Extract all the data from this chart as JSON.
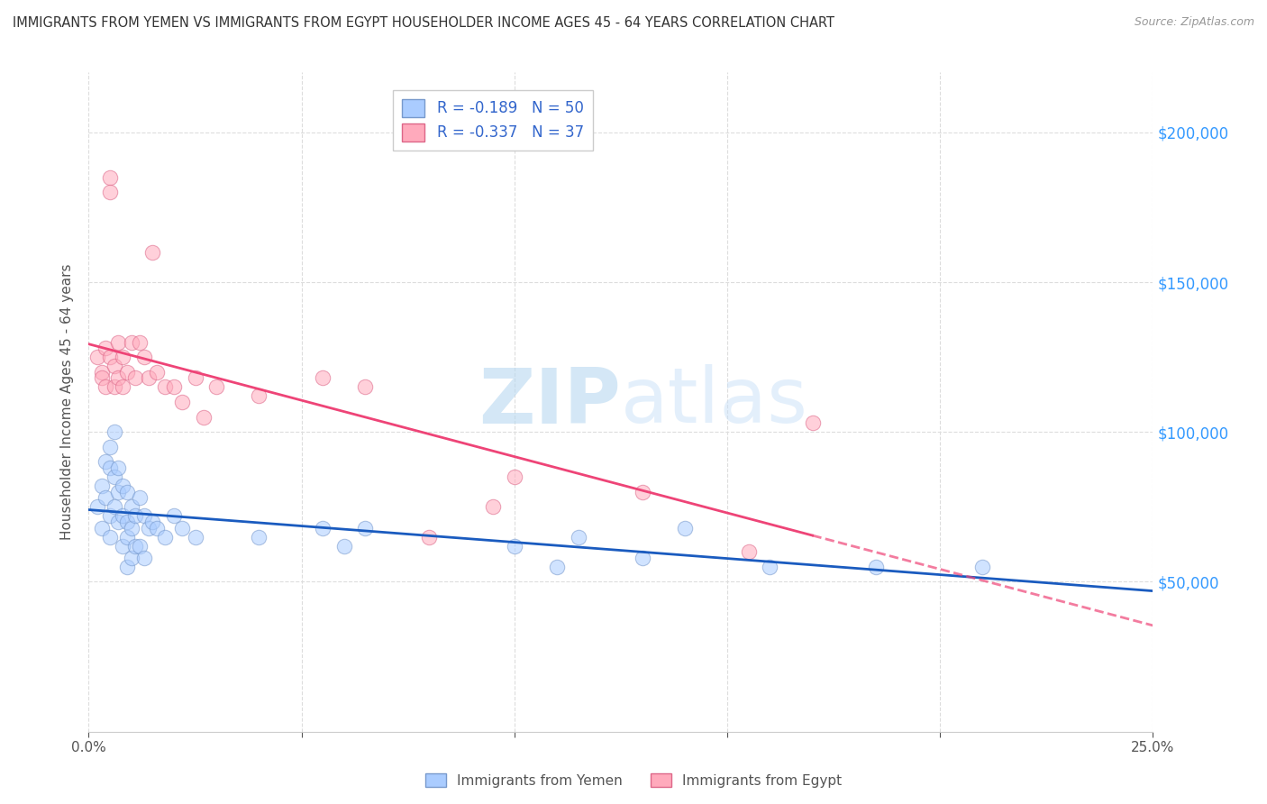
{
  "title": "IMMIGRANTS FROM YEMEN VS IMMIGRANTS FROM EGYPT HOUSEHOLDER INCOME AGES 45 - 64 YEARS CORRELATION CHART",
  "source": "Source: ZipAtlas.com",
  "ylabel": "Householder Income Ages 45 - 64 years",
  "xlim": [
    0.0,
    0.25
  ],
  "ylim": [
    0,
    220000
  ],
  "yticks_right": [
    50000,
    100000,
    150000,
    200000
  ],
  "series_yemen": {
    "color": "#aaccff",
    "border_color": "#7799cc",
    "label": "Immigrants from Yemen",
    "R": -0.189,
    "N": 50,
    "line_color": "#1a5bbf"
  },
  "series_egypt": {
    "color": "#ffaabc",
    "border_color": "#dd6688",
    "label": "Immigrants from Egypt",
    "R": -0.337,
    "N": 37,
    "line_color": "#ee4477"
  },
  "yemen_x": [
    0.002,
    0.003,
    0.003,
    0.004,
    0.004,
    0.005,
    0.005,
    0.005,
    0.005,
    0.006,
    0.006,
    0.006,
    0.007,
    0.007,
    0.007,
    0.008,
    0.008,
    0.008,
    0.009,
    0.009,
    0.009,
    0.009,
    0.01,
    0.01,
    0.01,
    0.011,
    0.011,
    0.012,
    0.012,
    0.013,
    0.013,
    0.014,
    0.015,
    0.016,
    0.018,
    0.02,
    0.022,
    0.025,
    0.04,
    0.055,
    0.06,
    0.065,
    0.1,
    0.11,
    0.115,
    0.13,
    0.14,
    0.16,
    0.185,
    0.21
  ],
  "yemen_y": [
    75000,
    82000,
    68000,
    90000,
    78000,
    88000,
    95000,
    72000,
    65000,
    100000,
    85000,
    75000,
    88000,
    80000,
    70000,
    82000,
    72000,
    62000,
    80000,
    70000,
    65000,
    55000,
    75000,
    68000,
    58000,
    72000,
    62000,
    78000,
    62000,
    72000,
    58000,
    68000,
    70000,
    68000,
    65000,
    72000,
    68000,
    65000,
    65000,
    68000,
    62000,
    68000,
    62000,
    55000,
    65000,
    58000,
    68000,
    55000,
    55000,
    55000
  ],
  "egypt_x": [
    0.002,
    0.003,
    0.003,
    0.004,
    0.004,
    0.005,
    0.005,
    0.005,
    0.006,
    0.006,
    0.007,
    0.007,
    0.008,
    0.008,
    0.009,
    0.01,
    0.011,
    0.012,
    0.013,
    0.014,
    0.015,
    0.016,
    0.018,
    0.02,
    0.022,
    0.025,
    0.027,
    0.03,
    0.04,
    0.055,
    0.065,
    0.08,
    0.095,
    0.1,
    0.13,
    0.155,
    0.17
  ],
  "egypt_y": [
    125000,
    120000,
    118000,
    128000,
    115000,
    185000,
    180000,
    125000,
    122000,
    115000,
    130000,
    118000,
    125000,
    115000,
    120000,
    130000,
    118000,
    130000,
    125000,
    118000,
    160000,
    120000,
    115000,
    115000,
    110000,
    118000,
    105000,
    115000,
    112000,
    118000,
    115000,
    65000,
    75000,
    85000,
    80000,
    60000,
    103000
  ],
  "background_color": "#ffffff",
  "grid_color": "#dddddd",
  "watermark": "ZIPatlas",
  "marker_size": 140,
  "marker_alpha": 0.55
}
